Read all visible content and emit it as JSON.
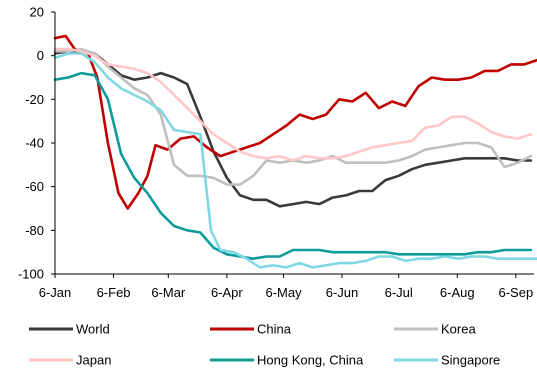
{
  "chart_data": {
    "type": "line",
    "title": "",
    "xlabel": "",
    "ylabel": "",
    "ylim": [
      -100,
      20
    ],
    "yticks": [
      20,
      0,
      -20,
      -40,
      -60,
      -80,
      -100
    ],
    "x_ticks": [
      {
        "t": 0,
        "label": "6-Jan"
      },
      {
        "t": 4.43,
        "label": "6-Feb"
      },
      {
        "t": 8.57,
        "label": "6-Mar"
      },
      {
        "t": 13,
        "label": "6-Apr"
      },
      {
        "t": 17.29,
        "label": "6-May"
      },
      {
        "t": 21.71,
        "label": "6-Jun"
      },
      {
        "t": 26,
        "label": "6-Jul"
      },
      {
        "t": 30.43,
        "label": "6-Aug"
      },
      {
        "t": 34.86,
        "label": "6-Sep"
      }
    ],
    "x_unit": "weeks since 6-Jan",
    "grid": false,
    "legend_position": "bottom",
    "series": [
      {
        "name": "World",
        "color": "#3a3a3a",
        "points": [
          [
            0,
            1
          ],
          [
            1,
            2
          ],
          [
            2,
            2
          ],
          [
            3,
            1
          ],
          [
            4,
            -4
          ],
          [
            5,
            -9
          ],
          [
            6,
            -11
          ],
          [
            7,
            -10
          ],
          [
            8,
            -8
          ],
          [
            9,
            -10
          ],
          [
            10,
            -13
          ],
          [
            11,
            -28
          ],
          [
            12,
            -44
          ],
          [
            13,
            -56
          ],
          [
            14,
            -64
          ],
          [
            15,
            -66
          ],
          [
            16,
            -66
          ],
          [
            17,
            -69
          ],
          [
            18,
            -68
          ],
          [
            19,
            -67
          ],
          [
            20,
            -68
          ],
          [
            21,
            -65
          ],
          [
            22,
            -64
          ],
          [
            23,
            -62
          ],
          [
            24,
            -62
          ],
          [
            25,
            -57
          ],
          [
            26,
            -55
          ],
          [
            27,
            -52
          ],
          [
            28,
            -50
          ],
          [
            29,
            -49
          ],
          [
            30,
            -48
          ],
          [
            31,
            -47
          ],
          [
            32,
            -47
          ],
          [
            33,
            -47
          ],
          [
            34,
            -47
          ],
          [
            35,
            -48
          ],
          [
            36,
            -48
          ]
        ]
      },
      {
        "name": "China",
        "color": "#c00000",
        "points": [
          [
            0,
            8
          ],
          [
            0.8,
            9
          ],
          [
            1.5,
            3
          ],
          [
            2.5,
            1
          ],
          [
            3.2,
            -10
          ],
          [
            4,
            -40
          ],
          [
            4.8,
            -63
          ],
          [
            5.5,
            -70
          ],
          [
            6.3,
            -63
          ],
          [
            7,
            -55
          ],
          [
            7.6,
            -41
          ],
          [
            8.5,
            -43
          ],
          [
            9.5,
            -38
          ],
          [
            10.5,
            -37
          ],
          [
            11.5,
            -42
          ],
          [
            12.5,
            -46
          ],
          [
            13.5,
            -44
          ],
          [
            14.5,
            -42
          ],
          [
            15.5,
            -40
          ],
          [
            16.5,
            -36
          ],
          [
            17.5,
            -32
          ],
          [
            18.5,
            -27
          ],
          [
            19.5,
            -29
          ],
          [
            20.5,
            -27
          ],
          [
            21.5,
            -20
          ],
          [
            22.5,
            -21
          ],
          [
            23.5,
            -17
          ],
          [
            24.5,
            -24
          ],
          [
            25.5,
            -21
          ],
          [
            26.5,
            -23
          ],
          [
            27.5,
            -14
          ],
          [
            28.5,
            -10
          ],
          [
            29.5,
            -11
          ],
          [
            30.5,
            -11
          ],
          [
            31.5,
            -10
          ],
          [
            32.5,
            -7
          ],
          [
            33.5,
            -7
          ],
          [
            34.5,
            -4
          ],
          [
            35.5,
            -4
          ],
          [
            36.5,
            -2
          ]
        ]
      },
      {
        "name": "Korea",
        "color": "#bfbfbf",
        "points": [
          [
            0,
            2
          ],
          [
            1,
            2
          ],
          [
            2,
            3
          ],
          [
            3,
            1
          ],
          [
            4,
            -5
          ],
          [
            5,
            -10
          ],
          [
            6,
            -15
          ],
          [
            7,
            -18
          ],
          [
            8,
            -27
          ],
          [
            9,
            -50
          ],
          [
            10,
            -55
          ],
          [
            11,
            -55
          ],
          [
            12,
            -56
          ],
          [
            13,
            -59
          ],
          [
            14,
            -59
          ],
          [
            15,
            -55
          ],
          [
            16,
            -48
          ],
          [
            17,
            -49
          ],
          [
            18,
            -48
          ],
          [
            19,
            -49
          ],
          [
            20,
            -48
          ],
          [
            21,
            -46
          ],
          [
            22,
            -49
          ],
          [
            23,
            -49
          ],
          [
            24,
            -49
          ],
          [
            25,
            -49
          ],
          [
            26,
            -48
          ],
          [
            27,
            -46
          ],
          [
            28,
            -43
          ],
          [
            29,
            -42
          ],
          [
            30,
            -41
          ],
          [
            31,
            -40
          ],
          [
            32,
            -40
          ],
          [
            33,
            -42
          ],
          [
            34,
            -51
          ],
          [
            35,
            -49
          ],
          [
            36,
            -46
          ]
        ]
      },
      {
        "name": "Japan",
        "color": "#ffc7c7",
        "points": [
          [
            0,
            3
          ],
          [
            1,
            3
          ],
          [
            2,
            2
          ],
          [
            3,
            0
          ],
          [
            4,
            -4
          ],
          [
            5,
            -5
          ],
          [
            6,
            -6
          ],
          [
            7,
            -8
          ],
          [
            8,
            -12
          ],
          [
            9,
            -18
          ],
          [
            10,
            -24
          ],
          [
            11,
            -30
          ],
          [
            12,
            -36
          ],
          [
            13,
            -40
          ],
          [
            14,
            -44
          ],
          [
            15,
            -46
          ],
          [
            16,
            -47
          ],
          [
            17,
            -46
          ],
          [
            18,
            -48
          ],
          [
            19,
            -46
          ],
          [
            20,
            -47
          ],
          [
            21,
            -47
          ],
          [
            22,
            -46
          ],
          [
            23,
            -44
          ],
          [
            24,
            -42
          ],
          [
            25,
            -41
          ],
          [
            26,
            -40
          ],
          [
            27,
            -39
          ],
          [
            28,
            -33
          ],
          [
            29,
            -32
          ],
          [
            30,
            -28
          ],
          [
            31,
            -28
          ],
          [
            32,
            -31
          ],
          [
            33,
            -35
          ],
          [
            34,
            -37
          ],
          [
            35,
            -38
          ],
          [
            36,
            -36
          ]
        ]
      },
      {
        "name": "Hong Kong, China",
        "color": "#0f9b9b",
        "points": [
          [
            0,
            -11
          ],
          [
            1,
            -10
          ],
          [
            2,
            -8
          ],
          [
            3,
            -9
          ],
          [
            4,
            -20
          ],
          [
            5,
            -45
          ],
          [
            6,
            -56
          ],
          [
            7,
            -63
          ],
          [
            8,
            -72
          ],
          [
            9,
            -78
          ],
          [
            10,
            -80
          ],
          [
            11,
            -81
          ],
          [
            12,
            -88
          ],
          [
            13,
            -91
          ],
          [
            14,
            -92
          ],
          [
            15,
            -93
          ],
          [
            16,
            -92
          ],
          [
            17,
            -92
          ],
          [
            18,
            -89
          ],
          [
            19,
            -89
          ],
          [
            20,
            -89
          ],
          [
            21,
            -90
          ],
          [
            22,
            -90
          ],
          [
            23,
            -90
          ],
          [
            24,
            -90
          ],
          [
            25,
            -90
          ],
          [
            26,
            -91
          ],
          [
            27,
            -91
          ],
          [
            28,
            -91
          ],
          [
            29,
            -91
          ],
          [
            30,
            -91
          ],
          [
            31,
            -91
          ],
          [
            32,
            -90
          ],
          [
            33,
            -90
          ],
          [
            34,
            -89
          ],
          [
            35,
            -89
          ],
          [
            36,
            -89
          ]
        ]
      },
      {
        "name": "Singapore",
        "color": "#7fd8e3",
        "points": [
          [
            0,
            -1
          ],
          [
            1,
            1
          ],
          [
            2,
            1
          ],
          [
            3,
            -3
          ],
          [
            4,
            -10
          ],
          [
            5,
            -15
          ],
          [
            6,
            -18
          ],
          [
            7,
            -21
          ],
          [
            8,
            -25
          ],
          [
            9,
            -34
          ],
          [
            10,
            -35
          ],
          [
            11,
            -36
          ],
          [
            11.8,
            -80
          ],
          [
            12.5,
            -89
          ],
          [
            13.5,
            -90
          ],
          [
            14.5,
            -93
          ],
          [
            15.5,
            -97
          ],
          [
            16.5,
            -96
          ],
          [
            17.5,
            -97
          ],
          [
            18.5,
            -95
          ],
          [
            19.5,
            -97
          ],
          [
            20.5,
            -96
          ],
          [
            21.5,
            -95
          ],
          [
            22.5,
            -95
          ],
          [
            23.5,
            -94
          ],
          [
            24.5,
            -92
          ],
          [
            25.5,
            -92
          ],
          [
            26.5,
            -94
          ],
          [
            27.5,
            -93
          ],
          [
            28.5,
            -93
          ],
          [
            29.5,
            -92
          ],
          [
            30.5,
            -93
          ],
          [
            31.5,
            -92
          ],
          [
            32.5,
            -92
          ],
          [
            33.5,
            -93
          ],
          [
            34.5,
            -93
          ],
          [
            35.5,
            -93
          ],
          [
            36.5,
            -93
          ]
        ]
      }
    ]
  }
}
